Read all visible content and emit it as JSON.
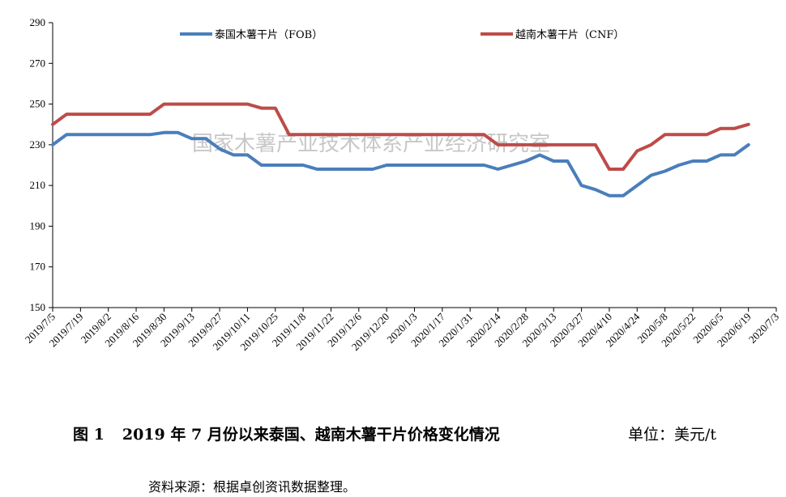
{
  "chart_data": {
    "type": "line",
    "ylim": [
      150,
      290
    ],
    "yticks": [
      150,
      170,
      190,
      210,
      230,
      250,
      270,
      290
    ],
    "xlim": [
      "2019/7/5",
      "2020/7/3"
    ],
    "xticks": [
      "2019/7/5",
      "2019/7/19",
      "2019/8/2",
      "2019/8/16",
      "2019/8/30",
      "2019/9/13",
      "2019/9/27",
      "2019/10/11",
      "2019/10/25",
      "2019/11/8",
      "2019/11/22",
      "2019/12/6",
      "2019/12/20",
      "2020/1/3",
      "2020/1/17",
      "2020/1/31",
      "2020/2/14",
      "2020/2/28",
      "2020/3/13",
      "2020/3/27",
      "2020/4/10",
      "2020/4/24",
      "2020/5/8",
      "2020/5/22",
      "2020/6/5",
      "2020/6/19",
      "2020/7/3"
    ],
    "legend_position": "top",
    "series": [
      {
        "name": "泰国木薯干片（FOB）",
        "color": "#4a7ebb",
        "points": [
          [
            "2019/7/5",
            230
          ],
          [
            "2019/7/12",
            235
          ],
          [
            "2019/7/19",
            235
          ],
          [
            "2019/7/26",
            235
          ],
          [
            "2019/8/2",
            235
          ],
          [
            "2019/8/9",
            235
          ],
          [
            "2019/8/16",
            235
          ],
          [
            "2019/8/23",
            235
          ],
          [
            "2019/8/30",
            236
          ],
          [
            "2019/9/6",
            236
          ],
          [
            "2019/9/13",
            233
          ],
          [
            "2019/9/20",
            233
          ],
          [
            "2019/9/27",
            228
          ],
          [
            "2019/10/4",
            225
          ],
          [
            "2019/10/11",
            225
          ],
          [
            "2019/10/18",
            220
          ],
          [
            "2019/10/25",
            220
          ],
          [
            "2019/11/1",
            220
          ],
          [
            "2019/11/8",
            220
          ],
          [
            "2019/11/15",
            218
          ],
          [
            "2019/11/22",
            218
          ],
          [
            "2019/11/29",
            218
          ],
          [
            "2019/12/6",
            218
          ],
          [
            "2019/12/13",
            218
          ],
          [
            "2019/12/20",
            220
          ],
          [
            "2019/12/27",
            220
          ],
          [
            "2020/1/3",
            220
          ],
          [
            "2020/1/10",
            220
          ],
          [
            "2020/1/17",
            220
          ],
          [
            "2020/1/24",
            220
          ],
          [
            "2020/1/31",
            220
          ],
          [
            "2020/2/7",
            220
          ],
          [
            "2020/2/14",
            218
          ],
          [
            "2020/2/21",
            220
          ],
          [
            "2020/2/28",
            222
          ],
          [
            "2020/3/6",
            225
          ],
          [
            "2020/3/13",
            222
          ],
          [
            "2020/3/20",
            222
          ],
          [
            "2020/3/27",
            210
          ],
          [
            "2020/4/3",
            208
          ],
          [
            "2020/4/10",
            205
          ],
          [
            "2020/4/17",
            205
          ],
          [
            "2020/4/24",
            210
          ],
          [
            "2020/5/1",
            215
          ],
          [
            "2020/5/8",
            217
          ],
          [
            "2020/5/15",
            220
          ],
          [
            "2020/5/22",
            222
          ],
          [
            "2020/5/29",
            222
          ],
          [
            "2020/6/5",
            225
          ],
          [
            "2020/6/12",
            225
          ],
          [
            "2020/6/19",
            230
          ]
        ]
      },
      {
        "name": "越南木薯干片（CNF）",
        "color": "#be4b48",
        "points": [
          [
            "2019/7/5",
            240
          ],
          [
            "2019/7/12",
            245
          ],
          [
            "2019/7/19",
            245
          ],
          [
            "2019/7/26",
            245
          ],
          [
            "2019/8/2",
            245
          ],
          [
            "2019/8/9",
            245
          ],
          [
            "2019/8/16",
            245
          ],
          [
            "2019/8/23",
            245
          ],
          [
            "2019/8/30",
            250
          ],
          [
            "2019/9/6",
            250
          ],
          [
            "2019/9/13",
            250
          ],
          [
            "2019/9/20",
            250
          ],
          [
            "2019/9/27",
            250
          ],
          [
            "2019/10/4",
            250
          ],
          [
            "2019/10/11",
            250
          ],
          [
            "2019/10/18",
            248
          ],
          [
            "2019/10/25",
            248
          ],
          [
            "2019/11/1",
            235
          ],
          [
            "2019/11/8",
            235
          ],
          [
            "2019/11/15",
            235
          ],
          [
            "2019/11/22",
            235
          ],
          [
            "2019/11/29",
            235
          ],
          [
            "2019/12/6",
            235
          ],
          [
            "2019/12/13",
            235
          ],
          [
            "2019/12/20",
            235
          ],
          [
            "2019/12/27",
            235
          ],
          [
            "2020/1/3",
            235
          ],
          [
            "2020/1/10",
            235
          ],
          [
            "2020/1/17",
            235
          ],
          [
            "2020/1/24",
            235
          ],
          [
            "2020/1/31",
            235
          ],
          [
            "2020/2/7",
            235
          ],
          [
            "2020/2/14",
            230
          ],
          [
            "2020/2/21",
            230
          ],
          [
            "2020/2/28",
            230
          ],
          [
            "2020/3/6",
            230
          ],
          [
            "2020/3/13",
            230
          ],
          [
            "2020/3/20",
            230
          ],
          [
            "2020/3/27",
            230
          ],
          [
            "2020/4/3",
            230
          ],
          [
            "2020/4/10",
            218
          ],
          [
            "2020/4/17",
            218
          ],
          [
            "2020/4/24",
            227
          ],
          [
            "2020/5/1",
            230
          ],
          [
            "2020/5/8",
            235
          ],
          [
            "2020/5/15",
            235
          ],
          [
            "2020/5/22",
            235
          ],
          [
            "2020/5/29",
            235
          ],
          [
            "2020/6/5",
            238
          ],
          [
            "2020/6/12",
            238
          ],
          [
            "2020/6/19",
            240
          ]
        ]
      }
    ]
  },
  "watermark": "国家木薯产业技术体系产业经济研究室",
  "caption": {
    "figure_number": "图 1",
    "title": "2019 年 7 月份以来泰国、越南木薯干片价格变化情况",
    "unit": "单位：美元/t"
  },
  "source_note": "资料来源：根据卓创资讯数据整理。"
}
